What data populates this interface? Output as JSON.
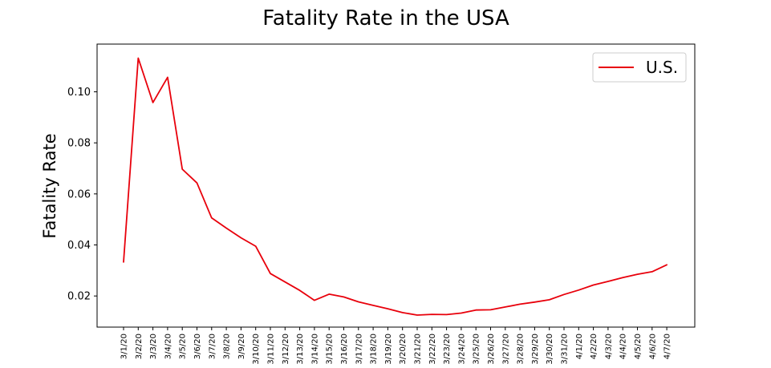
{
  "chart_data": {
    "type": "line",
    "title": "Fatality Rate in the USA",
    "xlabel": "",
    "ylabel": "Fatality Rate",
    "categories": [
      "3/1/20",
      "3/2/20",
      "3/3/20",
      "3/4/20",
      "3/5/20",
      "3/6/20",
      "3/7/20",
      "3/8/20",
      "3/9/20",
      "3/10/20",
      "3/11/20",
      "3/12/20",
      "3/13/20",
      "3/14/20",
      "3/15/20",
      "3/16/20",
      "3/17/20",
      "3/18/20",
      "3/19/20",
      "3/20/20",
      "3/21/20",
      "3/22/20",
      "3/23/20",
      "3/24/20",
      "3/25/20",
      "3/26/20",
      "3/27/20",
      "3/28/20",
      "3/29/20",
      "3/30/20",
      "3/31/20",
      "4/1/20",
      "4/2/20",
      "4/3/20",
      "4/4/20",
      "4/5/20",
      "4/6/20",
      "4/7/20"
    ],
    "series": [
      {
        "name": "U.S.",
        "color": "#e8000b",
        "values": [
          0.0333,
          0.1132,
          0.0958,
          0.1057,
          0.0697,
          0.0643,
          0.0506,
          0.0466,
          0.0428,
          0.0395,
          0.0288,
          0.0255,
          0.0222,
          0.0183,
          0.0207,
          0.0196,
          0.0177,
          0.0163,
          0.015,
          0.0135,
          0.0125,
          0.0128,
          0.0127,
          0.0133,
          0.0145,
          0.0146,
          0.0157,
          0.0168,
          0.0176,
          0.0185,
          0.0206,
          0.0223,
          0.0243,
          0.0257,
          0.0272,
          0.0285,
          0.0295,
          0.0322
        ]
      }
    ],
    "yticks": [
      0.02,
      0.04,
      0.06,
      0.08,
      0.1
    ],
    "ytick_labels": [
      "0.02",
      "0.04",
      "0.06",
      "0.08",
      "0.10"
    ],
    "ylim": [
      0.0078,
      0.1187
    ],
    "grid": false,
    "legend_position": "top-right"
  }
}
